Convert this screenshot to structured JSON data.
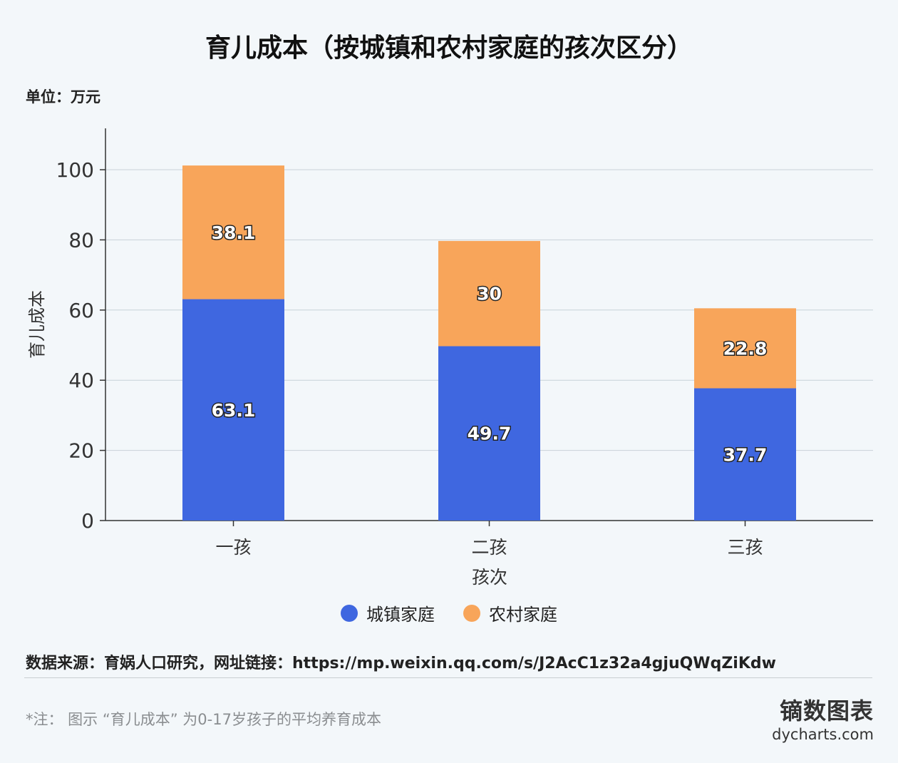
{
  "chart_data": {
    "type": "bar",
    "stacked": true,
    "title": "育儿成本（按城镇和农村家庭的孩次区分）",
    "unit": "单位：万元",
    "xlabel": "孩次",
    "ylabel": "育儿成本",
    "categories": [
      "一孩",
      "二孩",
      "三孩"
    ],
    "series": [
      {
        "name": "城镇家庭",
        "values": [
          63.1,
          49.7,
          37.7
        ],
        "color": "#3f67e0"
      },
      {
        "name": "农村家庭",
        "values": [
          38.1,
          30,
          22.8
        ],
        "color": "#f8a55a"
      }
    ],
    "ylim": [
      0,
      100
    ],
    "yticks": [
      0,
      20,
      40,
      60,
      80,
      100
    ],
    "grid": true,
    "legend_position": "bottom"
  },
  "footer": {
    "source": "数据来源：育娲人口研究，网址链接：https://mp.weixin.qq.com/s/J2AcC1z32a4gjuQWqZiKdw",
    "note": "*注：  图示 “育儿成本” 为0-17岁孩子的平均养育成本",
    "brand_cn": "镝数图表",
    "brand_en": "dycharts.com"
  }
}
